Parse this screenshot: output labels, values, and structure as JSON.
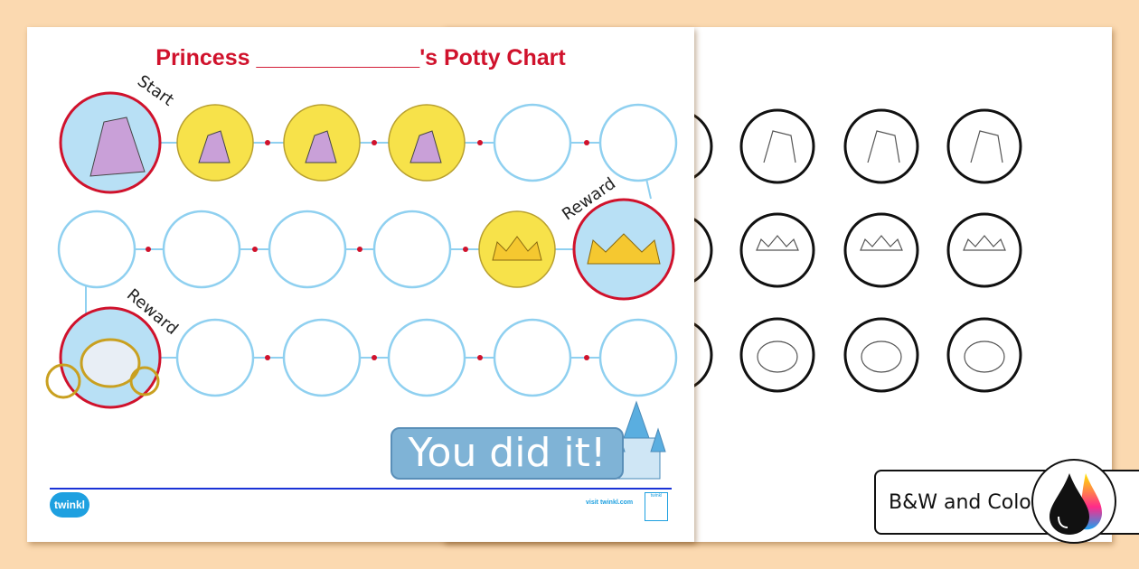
{
  "chart_title": "Princess _____________'s  Potty Chart",
  "labels": {
    "start": "Start",
    "reward_1": "Reward",
    "reward_2": "Reward"
  },
  "banner": "You did it!",
  "footer": {
    "logo": "twinkl",
    "visit": "visit twinkl.com",
    "badge": "twinkl"
  },
  "tag": "B&W and Color",
  "colors": {
    "red": "#d0122c",
    "circle_outline": "#8fd0f0",
    "gold": "#f7e24a",
    "background": "#fbd9b0"
  }
}
